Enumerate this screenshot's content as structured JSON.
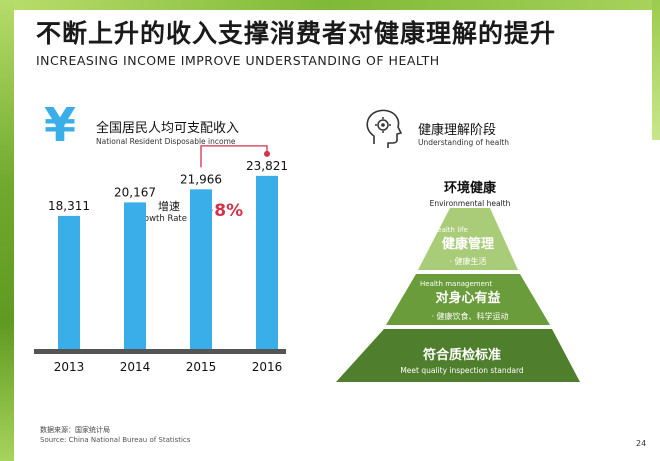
{
  "title": {
    "zh": "不断上升的收入支撑消费者对健康理解的提升",
    "en": "INCREASING INCOME IMPROVE UNDERSTANDING OF HEALTH"
  },
  "income": {
    "icon": "yen-icon",
    "label_zh": "全国居民人均可支配收入",
    "label_en": "National Resident Disposable income"
  },
  "growth": {
    "label_zh": "增速",
    "label_en": "Growth Rate",
    "value": "+8%",
    "color": "#d6304a"
  },
  "chart_data": {
    "type": "bar",
    "categories": [
      "2013",
      "2014",
      "2015",
      "2016"
    ],
    "values": [
      18311,
      20167,
      21966,
      23821
    ],
    "value_labels": [
      "18,311",
      "20,167",
      "21,966",
      "23,821"
    ],
    "bar_color": "#39aee8",
    "axis_color": "#555555",
    "ylim": [
      0,
      26000
    ],
    "title": "",
    "xlabel": "",
    "ylabel": ""
  },
  "understanding": {
    "icon": "head-gear-icon",
    "label_zh": "健康理解阶段",
    "label_en": "Understanding of health"
  },
  "pyramid": {
    "levels": [
      {
        "zh": "环境健康",
        "en": "Environmental health",
        "sub": "",
        "color": "#ffffff"
      },
      {
        "zh": "健康管理",
        "en": "Health life",
        "sub": "· 健康生活",
        "color": "#a9cc78"
      },
      {
        "zh": "对身心有益",
        "en": "Health management",
        "sub": "· 健康饮食、科学运动",
        "color": "#6b9c3b"
      },
      {
        "zh": "符合质检标准",
        "en": "Meet quality inspection standard",
        "sub": "",
        "color": "#4f7e2c"
      }
    ]
  },
  "source": {
    "zh": "数据来源：国家统计局",
    "en": "Source: China National Bureau of Statistics"
  },
  "page_number": "24"
}
